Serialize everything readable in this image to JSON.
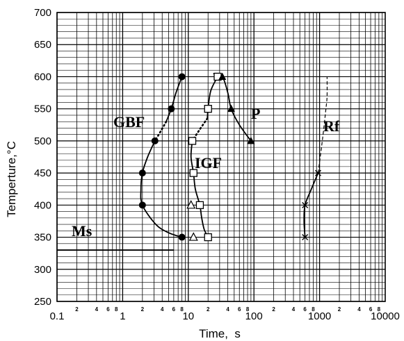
{
  "chart_data": {
    "type": "scatter",
    "title": "",
    "xlabel": "Time,  s",
    "ylabel": "Temperture,°C",
    "xscale": "log",
    "xlim": [
      0.1,
      10000
    ],
    "ylim": [
      250,
      700
    ],
    "grid": true,
    "x_ticks": [
      {
        "value": 0.1,
        "label": "0.1"
      },
      {
        "value": 1,
        "label": "1"
      },
      {
        "value": 10,
        "label": "10"
      },
      {
        "value": 100,
        "label": "100"
      },
      {
        "value": 1000,
        "label": "1000"
      },
      {
        "value": 10000,
        "label": "10000"
      }
    ],
    "x_minor_labels": [
      "2",
      "4",
      "6",
      "8"
    ],
    "y_ticks": [
      250,
      300,
      350,
      400,
      450,
      500,
      550,
      600,
      650,
      700
    ],
    "series": [
      {
        "name": "GBF",
        "marker": "filled-circle",
        "points": [
          [
            8,
            600
          ],
          [
            5.5,
            550
          ],
          [
            3.1,
            500
          ],
          [
            2,
            450
          ],
          [
            2,
            400
          ],
          [
            8,
            350
          ]
        ],
        "curve_segments": [
          [
            [
              8,
              600
            ],
            [
              6.5,
              575
            ],
            [
              5.5,
              550
            ],
            [
              4.6,
              530
            ]
          ],
          [
            [
              3.1,
              500
            ],
            [
              2.4,
              475
            ],
            [
              2,
              450
            ],
            [
              1.9,
              425
            ],
            [
              2,
              400
            ],
            [
              3.2,
              370
            ],
            [
              5,
              357
            ],
            [
              8,
              350
            ]
          ]
        ],
        "dotted_segments": [
          [
            [
              4.6,
              530
            ],
            [
              3.8,
              515
            ],
            [
              3.1,
              500
            ]
          ]
        ]
      },
      {
        "name": "IGF",
        "marker": "open-square",
        "points": [
          [
            28,
            600
          ],
          [
            20,
            550
          ],
          [
            11.5,
            500
          ],
          [
            12,
            450
          ],
          [
            15,
            400
          ],
          [
            20,
            350
          ]
        ],
        "curve_segments": [
          [
            [
              28,
              600
            ],
            [
              22,
              578
            ],
            [
              20,
              550
            ],
            [
              19.5,
              535
            ]
          ],
          [
            [
              11.5,
              500
            ],
            [
              11,
              475
            ],
            [
              12,
              450
            ],
            [
              12.8,
              425
            ],
            [
              15,
              400
            ],
            [
              16,
              380
            ],
            [
              17.5,
              362
            ],
            [
              20,
              350
            ]
          ]
        ],
        "dotted_segments": [
          [
            [
              19.5,
              535
            ],
            [
              15,
              518
            ],
            [
              11.5,
              500
            ]
          ]
        ]
      },
      {
        "name": "P",
        "marker": "filled-triangle",
        "points": [
          [
            33,
            600
          ],
          [
            45,
            550
          ],
          [
            90,
            500
          ]
        ],
        "curve_segments": [
          [
            [
              24,
              605
            ],
            [
              33,
              600
            ],
            [
              40,
              575
            ],
            [
              45,
              550
            ],
            [
              60,
              525
            ],
            [
              90,
              500
            ]
          ]
        ],
        "dotted_segments": []
      },
      {
        "name": "",
        "marker": "open-triangle",
        "points": [
          [
            11,
            400
          ],
          [
            12,
            350
          ]
        ],
        "curve_segments": [],
        "dotted_segments": []
      },
      {
        "name": "Rf",
        "marker": "cross",
        "points": [
          [
            600,
            400
          ],
          [
            600,
            350
          ],
          [
            950,
            450
          ]
        ],
        "curve_segments": [
          [
            [
              600,
              350
            ],
            [
              580,
              375
            ],
            [
              600,
              400
            ],
            [
              750,
              425
            ],
            [
              950,
              450
            ]
          ]
        ],
        "dashed_segments": [
          [
            [
              950,
              450
            ],
            [
              1100,
              500
            ],
            [
              1250,
              550
            ],
            [
              1300,
              570
            ],
            [
              1300,
              600
            ]
          ]
        ],
        "dotted_segments": []
      }
    ],
    "ms_line": {
      "label": "Ms",
      "y": 330,
      "x_start": 0.1,
      "x_end": 8
    }
  }
}
